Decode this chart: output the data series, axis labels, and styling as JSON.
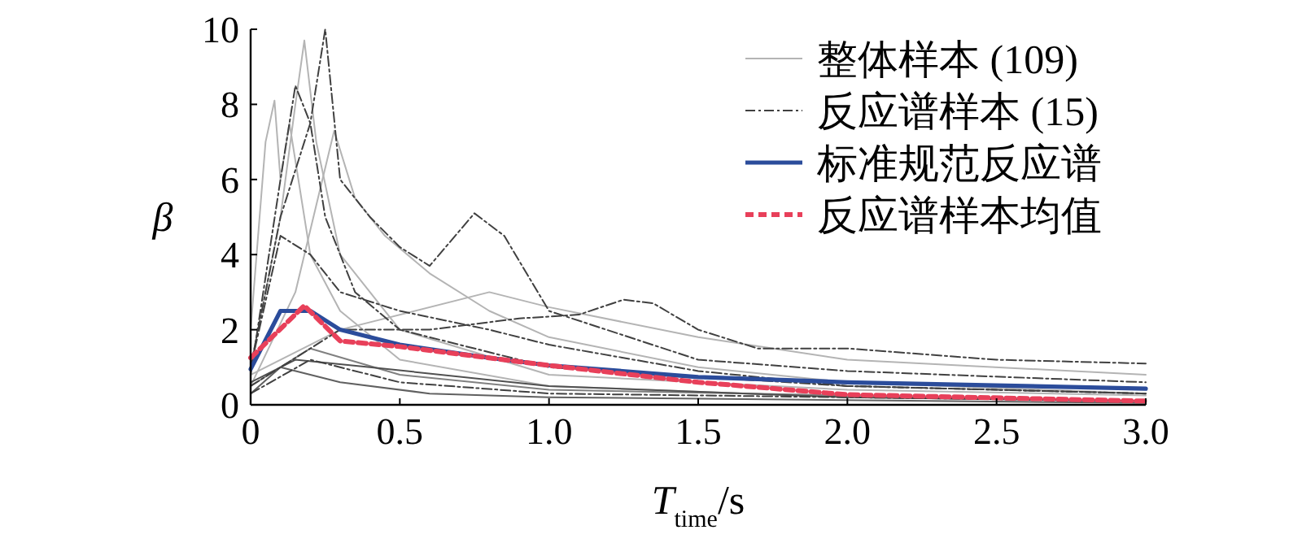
{
  "chart_data": {
    "type": "line",
    "xlabel": "*T*$_{time}$/s",
    "ylabel": "β",
    "xlim": [
      0,
      3
    ],
    "ylim": [
      0,
      10
    ],
    "xticks": [
      0,
      {
        "value": 0.5,
        "label": "0.5"
      },
      {
        "value": 1,
        "label": "1.0"
      },
      {
        "value": 1.5,
        "label": "1.5"
      },
      {
        "value": 2,
        "label": "2.0"
      },
      {
        "value": 2.5,
        "label": "2.5"
      },
      {
        "value": 3,
        "label": "3.0"
      }
    ],
    "yticks": [
      0,
      2,
      4,
      6,
      8,
      10
    ],
    "legend": "top right",
    "grid": false,
    "marker": "none",
    "series": [
      {
        "name": "整体样本 (109)",
        "color": "#b4b4b4",
        "line_style": "solid",
        "x": [
          0,
          0.05,
          0.1,
          0.15,
          0.18,
          0.22,
          0.3,
          0.5,
          1,
          2,
          3
        ],
        "values": [
          1,
          3,
          5,
          8,
          9.7,
          7,
          4,
          2,
          0.8,
          0.4,
          0.25
        ]
      },
      {
        "color": "#b4b4b4",
        "line_style": "solid",
        "x": [
          0,
          0.05,
          0.08,
          0.1,
          0.13,
          0.2,
          0.3,
          0.5,
          1,
          2,
          3
        ],
        "values": [
          2,
          7,
          8.1,
          6,
          7.5,
          4,
          2.5,
          1.2,
          0.5,
          0.2,
          0.1
        ]
      },
      {
        "color": "#b4b4b4",
        "line_style": "solid",
        "x": [
          0,
          0.15,
          0.28,
          0.35,
          0.45,
          0.6,
          0.8,
          1,
          1.5,
          2,
          3
        ],
        "values": [
          0.5,
          3,
          7.3,
          5.5,
          4.5,
          3.5,
          2.5,
          1.8,
          1,
          0.6,
          0.3
        ]
      },
      {
        "color": "#b4b4b4",
        "line_style": "solid",
        "x": [
          0,
          0.3,
          0.8,
          1,
          1.5,
          2,
          3
        ],
        "values": [
          0.8,
          2,
          3,
          2.6,
          1.8,
          1.2,
          0.8
        ]
      },
      {
        "color": "#808080",
        "line_style": "solid",
        "x": [
          0,
          0.2,
          0.5,
          1,
          3
        ],
        "values": [
          0.5,
          1.5,
          0.8,
          0.4,
          0.1
        ]
      },
      {
        "color": "#606060",
        "line_style": "solid",
        "x": [
          0,
          0.1,
          0.3,
          0.6,
          1,
          3
        ],
        "values": [
          0.3,
          1,
          0.6,
          0.3,
          0.2,
          0.05
        ]
      },
      {
        "color": "#505050",
        "line_style": "solid",
        "x": [
          0,
          0.15,
          0.4,
          1,
          2,
          3
        ],
        "values": [
          0.6,
          1.2,
          1,
          0.5,
          0.2,
          0.1
        ]
      },
      {
        "name": "反应谱样本 (15)",
        "color": "#404040",
        "line_style": "dashdot",
        "x": [
          0,
          0.1,
          0.2,
          0.25,
          0.3,
          0.4,
          0.5,
          0.6,
          0.75,
          0.85,
          1,
          1.5,
          2,
          3
        ],
        "values": [
          1,
          5,
          7.5,
          10,
          6,
          5,
          4.2,
          3.7,
          5.1,
          4.5,
          2.5,
          1.2,
          0.9,
          0.6
        ]
      },
      {
        "color": "#404040",
        "line_style": "dashdot",
        "x": [
          0,
          0.3,
          0.6,
          0.9,
          1.1,
          1.25,
          1.35,
          1.5,
          1.7,
          2,
          2.5,
          3
        ],
        "values": [
          0.5,
          2,
          2,
          2.3,
          2.4,
          2.8,
          2.7,
          2,
          1.5,
          1.5,
          1.2,
          1.1
        ]
      },
      {
        "color": "#404040",
        "line_style": "dashdot",
        "x": [
          0,
          0.1,
          0.2,
          0.3,
          0.5,
          0.8,
          1,
          1.5,
          2,
          3
        ],
        "values": [
          1,
          4.5,
          4,
          3,
          2.5,
          2,
          1.6,
          0.9,
          0.5,
          0.3
        ]
      },
      {
        "color": "#404040",
        "line_style": "dashdot",
        "x": [
          0,
          0.1,
          0.15,
          0.2,
          0.25,
          0.35,
          0.5,
          1,
          2,
          3
        ],
        "values": [
          0.8,
          6,
          8.5,
          7.5,
          5,
          3,
          2,
          1,
          0.5,
          0.3
        ]
      },
      {
        "color": "#404040",
        "line_style": "dashdot",
        "x": [
          0,
          0.2,
          0.5,
          1,
          3
        ],
        "values": [
          0.3,
          1.2,
          0.6,
          0.3,
          0.1
        ]
      },
      {
        "name": "标准规范反应谱",
        "color": "#2b4c9b",
        "line_style": "solid",
        "x": [
          0,
          0.1,
          0.2,
          0.3,
          0.5,
          0.8,
          1,
          1.5,
          2,
          3
        ],
        "values": [
          0.95,
          2.5,
          2.5,
          2,
          1.6,
          1.25,
          1.05,
          0.74,
          0.6,
          0.43
        ]
      },
      {
        "name": "反应谱样本均值",
        "color": "#e8405a",
        "line_style": "dashed",
        "x": [
          0,
          0.18,
          0.3,
          0.5,
          1,
          1.5,
          2,
          3
        ],
        "values": [
          1.25,
          2.64,
          1.7,
          1.55,
          1.05,
          0.6,
          0.27,
          0.1
        ]
      }
    ]
  }
}
